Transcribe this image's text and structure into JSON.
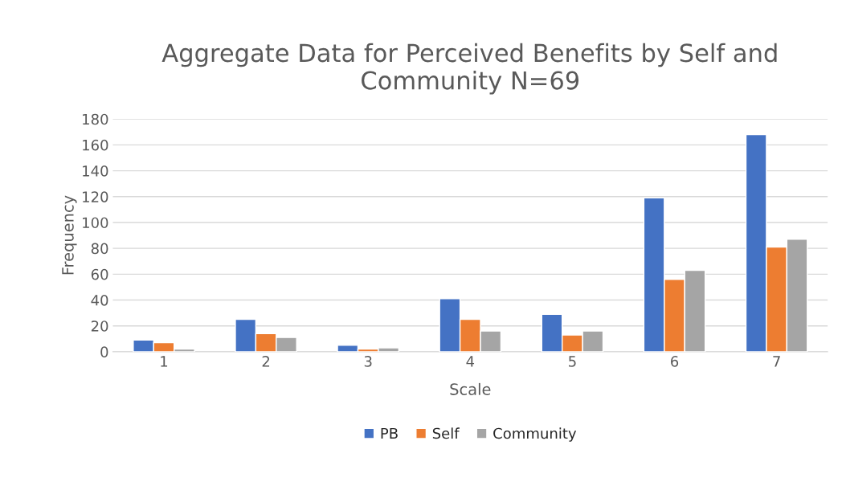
{
  "chart_data": {
    "type": "bar",
    "title": "Aggregate Data for Perceived Benefits by Self and Community N=69",
    "xlabel": "Scale",
    "ylabel": "Frequency",
    "categories": [
      "1",
      "2",
      "3",
      "4",
      "5",
      "6",
      "7"
    ],
    "series": [
      {
        "name": "PB",
        "color": "#4472c4",
        "values": [
          9,
          25,
          5,
          41,
          29,
          119,
          168
        ]
      },
      {
        "name": "Self",
        "color": "#ed7d31",
        "values": [
          7,
          14,
          2,
          25,
          13,
          56,
          81
        ]
      },
      {
        "name": "Community",
        "color": "#a5a5a5",
        "values": [
          2,
          11,
          3,
          16,
          16,
          63,
          87
        ]
      }
    ],
    "ylim": [
      0,
      180
    ],
    "yticks": [
      0,
      20,
      40,
      60,
      80,
      100,
      120,
      140,
      160,
      180
    ],
    "grid": "y",
    "legend": "bottom"
  }
}
